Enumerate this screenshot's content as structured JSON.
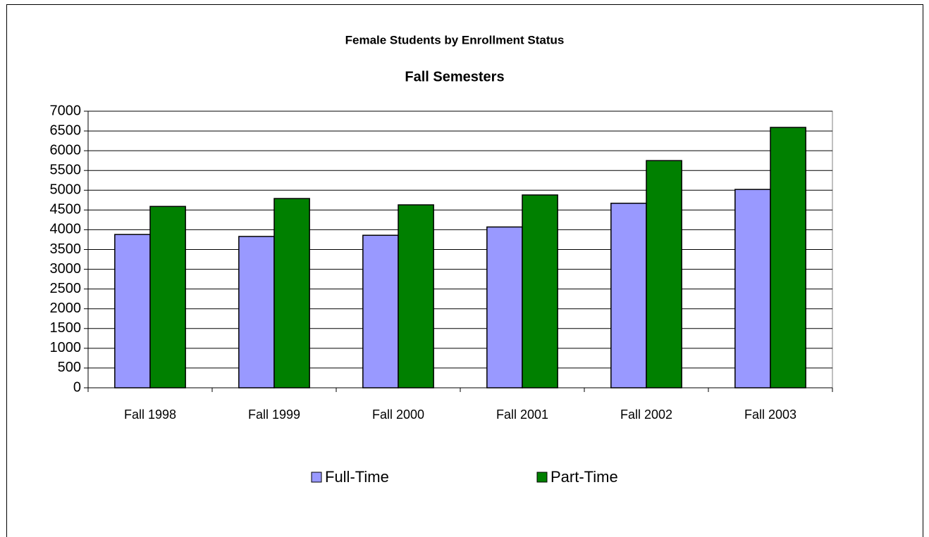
{
  "chart_data": {
    "type": "bar",
    "title": "Female Students by Enrollment Status",
    "subtitle": "Fall Semesters",
    "categories": [
      "Fall 1998",
      "Fall 1999",
      "Fall 2000",
      "Fall 2001",
      "Fall 2002",
      "Fall 2003"
    ],
    "series": [
      {
        "name": "Full-Time",
        "color": "#9999ff",
        "values": [
          3880,
          3830,
          3860,
          4070,
          4670,
          5020
        ]
      },
      {
        "name": "Part-Time",
        "color": "#008000",
        "values": [
          4590,
          4790,
          4630,
          4880,
          5750,
          6590
        ]
      }
    ],
    "ylim": [
      0,
      7000
    ],
    "yticks": [
      0,
      500,
      1000,
      1500,
      2000,
      2500,
      3000,
      3500,
      4000,
      4500,
      5000,
      5500,
      6000,
      6500,
      7000
    ],
    "grid": true,
    "legend": "bottom"
  }
}
